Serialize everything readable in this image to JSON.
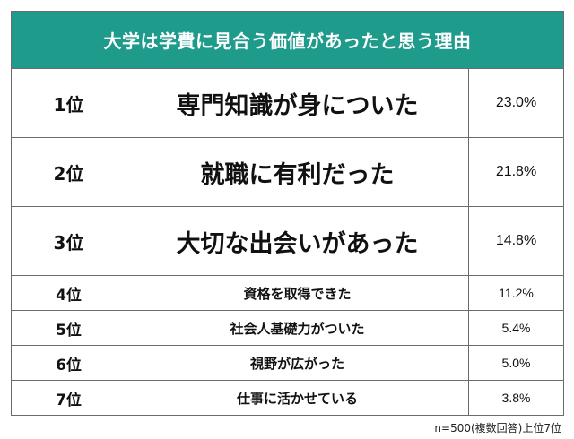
{
  "chart_data": {
    "type": "table",
    "title": "大学は学費に見合う価値があったと思う理由",
    "rows": [
      {
        "rank": "1位",
        "reason": "専門知識が身についた",
        "value": 23.0,
        "label": "23.0%"
      },
      {
        "rank": "2位",
        "reason": "就職に有利だった",
        "value": 21.8,
        "label": "21.8%"
      },
      {
        "rank": "3位",
        "reason": "大切な出会いがあった",
        "value": 14.8,
        "label": "14.8%"
      },
      {
        "rank": "4位",
        "reason": "資格を取得できた",
        "value": 11.2,
        "label": "11.2%"
      },
      {
        "rank": "5位",
        "reason": "社会人基礎力がついた",
        "value": 5.4,
        "label": "5.4%"
      },
      {
        "rank": "6位",
        "reason": "視野が広がった",
        "value": 5.0,
        "label": "5.0%"
      },
      {
        "rank": "7位",
        "reason": "仕事に活かせている",
        "value": 3.8,
        "label": "3.8%"
      }
    ],
    "note": "n=500(複数回答)上位7位"
  },
  "colors": {
    "header_background": "#1f9b8c",
    "header_text": "#ffffff",
    "border": "#6b6b6b"
  }
}
